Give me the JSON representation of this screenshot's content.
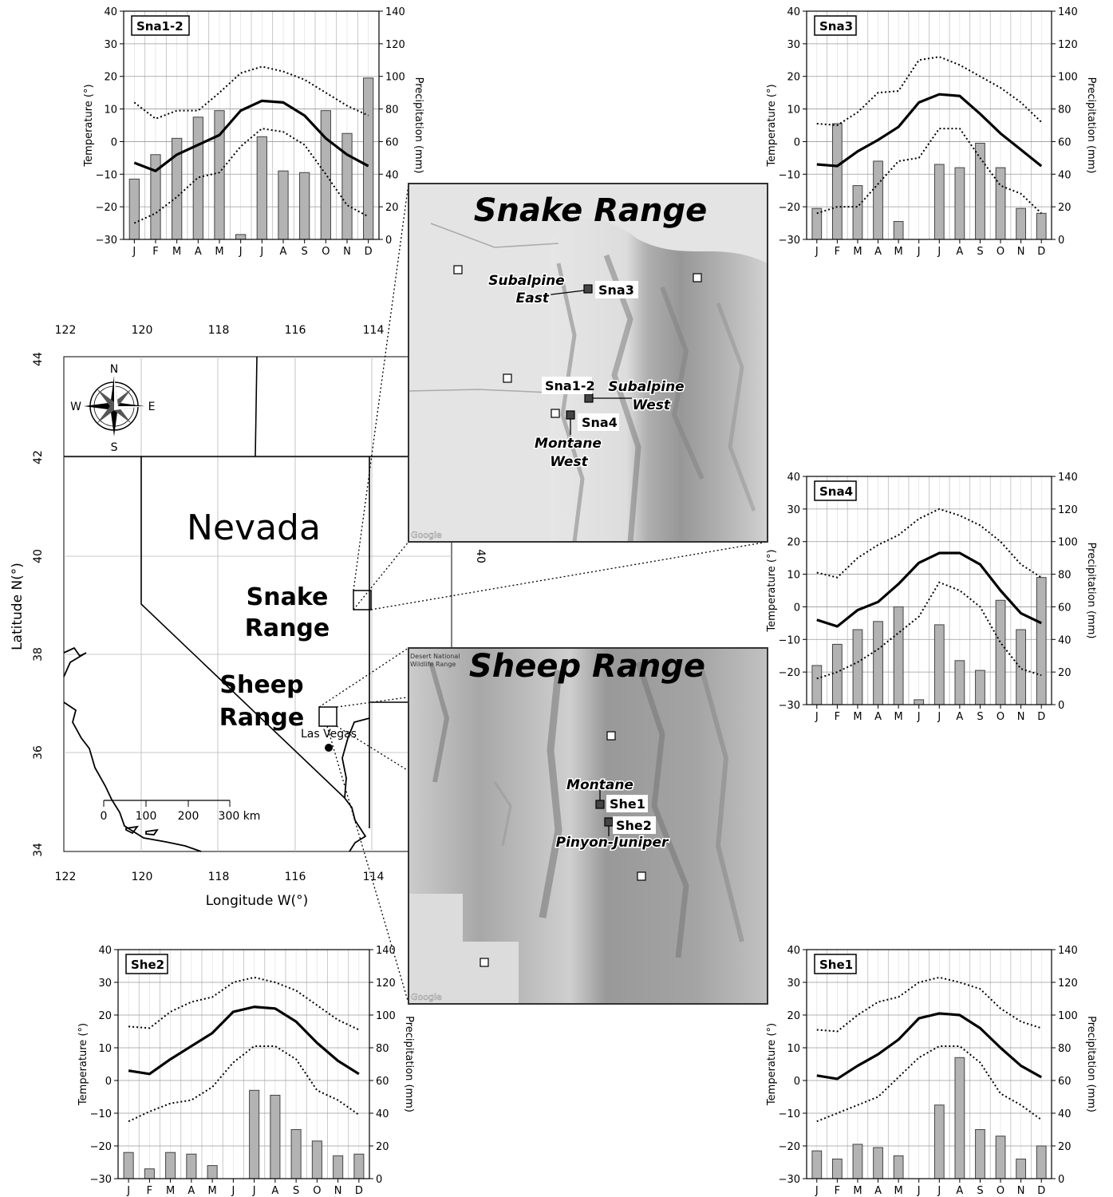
{
  "months": [
    "J",
    "F",
    "M",
    "A",
    "M",
    "J",
    "J",
    "A",
    "S",
    "O",
    "N",
    "D"
  ],
  "chart_data": [
    {
      "type": "bar",
      "title": "Sna1-2",
      "ylabel": "Temperature (°)",
      "y2label": "Precipitation (mm)",
      "categories": [
        "J",
        "F",
        "M",
        "A",
        "M",
        "J",
        "J",
        "A",
        "S",
        "O",
        "N",
        "D"
      ],
      "ylim": [
        -30,
        40
      ],
      "y2lim": [
        0,
        140
      ],
      "temp_ticks": [
        "40",
        "30",
        "20",
        "10",
        "0",
        "−10",
        "−20",
        "−30"
      ],
      "precip_ticks": [
        "140",
        "120",
        "100",
        "80",
        "60",
        "40",
        "20",
        "0"
      ],
      "series": [
        {
          "kind": "precipitation",
          "values": [
            37,
            52,
            62,
            75,
            79,
            3,
            63,
            42,
            41,
            79,
            65,
            99
          ]
        },
        {
          "kind": "mean_temp",
          "values": [
            -6.5,
            -9,
            -4,
            -1,
            2,
            9.5,
            12.5,
            12,
            8,
            1,
            -4,
            -7.5
          ]
        },
        {
          "kind": "max_temp",
          "values": [
            12,
            7,
            9.5,
            9.5,
            15,
            21,
            23,
            21.5,
            19,
            15,
            11,
            8
          ]
        },
        {
          "kind": "min_temp",
          "values": [
            -25,
            -22,
            -17,
            -11,
            -9.5,
            -1.5,
            4,
            3,
            -1,
            -10,
            -19.5,
            -23
          ]
        }
      ]
    },
    {
      "type": "bar",
      "title": "Sna3",
      "ylabel": "Temperature (°)",
      "y2label": "Precipitation (mm)",
      "categories": [
        "J",
        "F",
        "M",
        "A",
        "M",
        "J",
        "J",
        "A",
        "S",
        "O",
        "N",
        "D"
      ],
      "ylim": [
        -30,
        40
      ],
      "y2lim": [
        0,
        140
      ],
      "temp_ticks": [
        "40",
        "30",
        "20",
        "10",
        "0",
        "−10",
        "−20",
        "−30"
      ],
      "precip_ticks": [
        "140",
        "120",
        "100",
        "80",
        "60",
        "40",
        "20",
        "0"
      ],
      "series": [
        {
          "kind": "precipitation",
          "values": [
            19,
            71,
            33,
            48,
            11,
            0,
            46,
            44,
            59,
            44,
            19,
            16
          ]
        },
        {
          "kind": "mean_temp",
          "values": [
            -7,
            -7.5,
            -3,
            0.5,
            4.5,
            12,
            14.5,
            14,
            8.5,
            2.5,
            -2.5,
            -7.5
          ]
        },
        {
          "kind": "max_temp",
          "values": [
            5.5,
            5,
            9,
            15,
            15.5,
            25,
            26,
            23.5,
            20,
            16.5,
            12,
            6
          ]
        },
        {
          "kind": "min_temp",
          "values": [
            -22,
            -20,
            -20,
            -13,
            -6,
            -5,
            4,
            4,
            -5,
            -13.5,
            -16,
            -22
          ]
        }
      ]
    },
    {
      "type": "bar",
      "title": "Sna4",
      "ylabel": "Temperature (°)",
      "y2label": "Precipitation (mm)",
      "categories": [
        "J",
        "F",
        "M",
        "A",
        "M",
        "J",
        "J",
        "A",
        "S",
        "O",
        "N",
        "D"
      ],
      "ylim": [
        -30,
        40
      ],
      "y2lim": [
        0,
        140
      ],
      "temp_ticks": [
        "40",
        "30",
        "20",
        "10",
        "0",
        "−10",
        "−20",
        "−30"
      ],
      "precip_ticks": [
        "140",
        "120",
        "100",
        "80",
        "60",
        "40",
        "20",
        "0"
      ],
      "series": [
        {
          "kind": "precipitation",
          "values": [
            24,
            37,
            46,
            51,
            60,
            3,
            49,
            27,
            21,
            64,
            46,
            78
          ]
        },
        {
          "kind": "mean_temp",
          "values": [
            -4,
            -6,
            -1,
            1.5,
            7,
            13.5,
            16.5,
            16.5,
            13,
            5,
            -2,
            -5
          ]
        },
        {
          "kind": "max_temp",
          "values": [
            10.5,
            9,
            15,
            19,
            22,
            27,
            30,
            28,
            25,
            20,
            13,
            9
          ]
        },
        {
          "kind": "min_temp",
          "values": [
            -22,
            -20,
            -17,
            -13,
            -8,
            -3,
            7.5,
            5,
            0,
            -11,
            -19,
            -21
          ]
        }
      ]
    },
    {
      "type": "bar",
      "title": "She2",
      "ylabel": "Temperature (°)",
      "y2label": "Precipitation (mm)",
      "categories": [
        "J",
        "F",
        "M",
        "A",
        "M",
        "J",
        "J",
        "A",
        "S",
        "O",
        "N",
        "D"
      ],
      "ylim": [
        -30,
        40
      ],
      "y2lim": [
        0,
        140
      ],
      "temp_ticks": [
        "40",
        "30",
        "20",
        "10",
        "0",
        "−10",
        "−20",
        "−30"
      ],
      "precip_ticks": [
        "140",
        "120",
        "100",
        "80",
        "60",
        "40",
        "20",
        "0"
      ],
      "series": [
        {
          "kind": "precipitation",
          "values": [
            16,
            6,
            16,
            15,
            8,
            0,
            54,
            51,
            30,
            23,
            14,
            15
          ]
        },
        {
          "kind": "mean_temp",
          "values": [
            3,
            2,
            6.5,
            10.5,
            14.5,
            21,
            22.5,
            22,
            18,
            11.5,
            6,
            2
          ]
        },
        {
          "kind": "max_temp",
          "values": [
            16.5,
            16,
            21,
            24,
            25.5,
            30,
            31.5,
            30,
            27.5,
            23,
            18.5,
            15.5
          ]
        },
        {
          "kind": "min_temp",
          "values": [
            -12.5,
            -9.5,
            -7,
            -6,
            -2,
            5.5,
            10.5,
            10.5,
            6.5,
            -3,
            -6,
            -10.5
          ]
        }
      ]
    },
    {
      "type": "bar",
      "title": "She1",
      "ylabel": "Temperature (°)",
      "y2label": "Precipitation (mm)",
      "categories": [
        "J",
        "F",
        "M",
        "A",
        "M",
        "J",
        "J",
        "A",
        "S",
        "O",
        "N",
        "D"
      ],
      "ylim": [
        -30,
        40
      ],
      "y2lim": [
        0,
        140
      ],
      "temp_ticks": [
        "40",
        "30",
        "20",
        "10",
        "0",
        "−10",
        "−20",
        "−30"
      ],
      "precip_ticks": [
        "140",
        "120",
        "100",
        "80",
        "60",
        "40",
        "20",
        "0"
      ],
      "series": [
        {
          "kind": "precipitation",
          "values": [
            17,
            12,
            21,
            19,
            14,
            0,
            45,
            74,
            30,
            26,
            12,
            20
          ]
        },
        {
          "kind": "mean_temp",
          "values": [
            1.5,
            0.5,
            4.5,
            8,
            12.5,
            19,
            20.5,
            20,
            16,
            10,
            4.5,
            1
          ]
        },
        {
          "kind": "max_temp",
          "values": [
            15.5,
            15,
            20,
            24,
            25.5,
            30,
            31.5,
            30,
            28,
            22,
            18,
            16
          ]
        },
        {
          "kind": "min_temp",
          "values": [
            -12.5,
            -10,
            -7.5,
            -5,
            1,
            7,
            10.5,
            10.5,
            5.5,
            -4,
            -7.5,
            -12
          ]
        }
      ]
    }
  ],
  "map": {
    "state_label": "Nevada",
    "xlabel": "Longitude W(°)",
    "ylabel": "Latitude N(°)",
    "lon_ticks": [
      "122",
      "120",
      "118",
      "116",
      "114"
    ],
    "lat_ticks": [
      "44",
      "42",
      "40",
      "38",
      "36",
      "34"
    ],
    "inner_lat_tick": "40",
    "snake_label_1": "Snake",
    "snake_label_2": "Range",
    "sheep_label_1": "Sheep",
    "sheep_label_2": "Range",
    "city": "Las Vegas",
    "scale_ticks": [
      "0",
      "100",
      "200",
      "300 km"
    ],
    "compass": {
      "n": "N",
      "s": "S",
      "e": "E",
      "w": "W"
    }
  },
  "snake_inset": {
    "title": "Snake Range",
    "stations": [
      {
        "code": "Sna3",
        "group_line1": "Subalpine",
        "group_line2": "East"
      },
      {
        "code": "Sna1-2",
        "group_line1": "Subalpine",
        "group_line2": "West"
      },
      {
        "code": "Sna4",
        "group_line1": "Montane",
        "group_line2": "West"
      }
    ],
    "attribution": "Google"
  },
  "sheep_inset": {
    "title": "Sheep Range",
    "corner_label_1": "Desert National",
    "corner_label_2": "Wildlife Range",
    "stations": [
      {
        "code": "She1",
        "group": "Montane"
      },
      {
        "code": "She2",
        "group": "Pinyon-Juniper"
      }
    ],
    "attribution": "Google"
  }
}
